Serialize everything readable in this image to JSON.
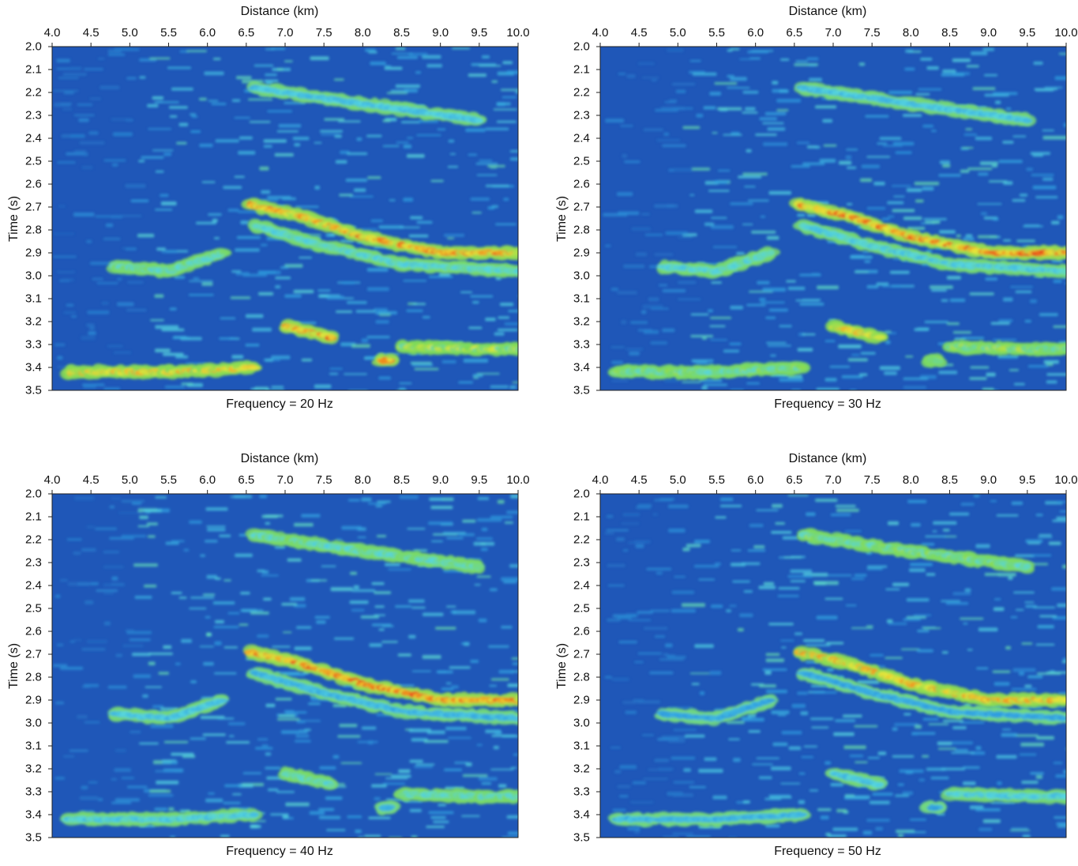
{
  "chart_data": [
    {
      "type": "heatmap",
      "title": "Frequency = 20 Hz",
      "xlabel": "Distance (km)",
      "ylabel": "Time (s)",
      "xticks": [
        "4.0",
        "4.5",
        "5.0",
        "5.5",
        "6.0",
        "6.5",
        "7.0",
        "7.5",
        "8.0",
        "8.5",
        "9.0",
        "9.5",
        "10.0"
      ],
      "yticks": [
        "2.0",
        "2.1",
        "2.2",
        "2.3",
        "2.4",
        "2.5",
        "2.6",
        "2.7",
        "2.8",
        "2.9",
        "3.0",
        "3.1",
        "3.2",
        "3.3",
        "3.4",
        "3.5"
      ],
      "xlim": [
        4.0,
        10.0
      ],
      "ylim": [
        2.0,
        3.5
      ],
      "y_inverted": true,
      "colorscale": [
        "#1f57b8",
        "#2f9ee0",
        "#56d6e0",
        "#7ed957",
        "#e8e83a",
        "#f08a1c",
        "#e0141b"
      ],
      "features": [
        {
          "x": [
            6.55,
            7.2,
            8.0,
            9.0,
            10.0
          ],
          "y": [
            2.69,
            2.74,
            2.83,
            2.9,
            2.9
          ],
          "intensity": 0.9
        },
        {
          "x": [
            6.6,
            7.5,
            8.5,
            10.0
          ],
          "y": [
            2.78,
            2.87,
            2.95,
            2.98
          ],
          "intensity": 0.45
        },
        {
          "x": [
            4.8,
            5.5,
            6.2
          ],
          "y": [
            2.96,
            2.98,
            2.9
          ],
          "intensity": 0.5
        },
        {
          "x": [
            7.0,
            7.6
          ],
          "y": [
            3.22,
            3.27
          ],
          "intensity": 0.95
        },
        {
          "x": [
            8.5,
            9.5,
            10.0
          ],
          "y": [
            3.31,
            3.32,
            3.32
          ],
          "intensity": 0.65
        },
        {
          "x": [
            4.2,
            5.5,
            6.6
          ],
          "y": [
            3.42,
            3.42,
            3.4
          ],
          "intensity": 0.8
        },
        {
          "x": [
            8.3
          ],
          "y": [
            3.37
          ],
          "intensity": 0.95
        },
        {
          "x": [
            6.6,
            8.0,
            9.5
          ],
          "y": [
            2.18,
            2.25,
            2.32
          ],
          "intensity": 0.35
        }
      ]
    },
    {
      "type": "heatmap",
      "title": "Frequency = 30 Hz",
      "xlabel": "Distance (km)",
      "ylabel": "Time (s)",
      "xticks": [
        "4.0",
        "4.5",
        "5.0",
        "5.5",
        "6.0",
        "6.5",
        "7.0",
        "7.5",
        "8.0",
        "8.5",
        "9.0",
        "9.5",
        "10.0"
      ],
      "yticks": [
        "2.0",
        "2.1",
        "2.2",
        "2.3",
        "2.4",
        "2.5",
        "2.6",
        "2.7",
        "2.8",
        "2.9",
        "3.0",
        "3.1",
        "3.2",
        "3.3",
        "3.4",
        "3.5"
      ],
      "xlim": [
        4.0,
        10.0
      ],
      "ylim": [
        2.0,
        3.5
      ],
      "y_inverted": true,
      "colorscale": [
        "#1f57b8",
        "#2f9ee0",
        "#56d6e0",
        "#7ed957",
        "#e8e83a",
        "#f08a1c",
        "#e0141b"
      ],
      "features": [
        {
          "x": [
            6.55,
            7.2,
            8.0,
            9.0,
            10.0
          ],
          "y": [
            2.69,
            2.74,
            2.83,
            2.9,
            2.9
          ],
          "intensity": 0.95
        },
        {
          "x": [
            6.6,
            7.5,
            8.5,
            10.0
          ],
          "y": [
            2.78,
            2.87,
            2.95,
            2.98
          ],
          "intensity": 0.4
        },
        {
          "x": [
            4.8,
            5.5,
            6.2
          ],
          "y": [
            2.96,
            2.98,
            2.9
          ],
          "intensity": 0.45
        },
        {
          "x": [
            7.0,
            7.6
          ],
          "y": [
            3.22,
            3.27
          ],
          "intensity": 0.8
        },
        {
          "x": [
            8.5,
            9.5,
            10.0
          ],
          "y": [
            3.31,
            3.32,
            3.32
          ],
          "intensity": 0.6
        },
        {
          "x": [
            4.2,
            5.5,
            6.6
          ],
          "y": [
            3.42,
            3.42,
            3.4
          ],
          "intensity": 0.55
        },
        {
          "x": [
            8.3
          ],
          "y": [
            3.37
          ],
          "intensity": 0.55
        },
        {
          "x": [
            6.6,
            8.0,
            9.5
          ],
          "y": [
            2.18,
            2.25,
            2.32
          ],
          "intensity": 0.35
        }
      ]
    },
    {
      "type": "heatmap",
      "title": "Frequency = 40 Hz",
      "xlabel": "Distance (km)",
      "ylabel": "Time (s)",
      "xticks": [
        "4.0",
        "4.5",
        "5.0",
        "5.5",
        "6.0",
        "6.5",
        "7.0",
        "7.5",
        "8.0",
        "8.5",
        "9.0",
        "9.5",
        "10.0"
      ],
      "yticks": [
        "2.0",
        "2.1",
        "2.2",
        "2.3",
        "2.4",
        "2.5",
        "2.6",
        "2.7",
        "2.8",
        "2.9",
        "3.0",
        "3.1",
        "3.2",
        "3.3",
        "3.4",
        "3.5"
      ],
      "xlim": [
        4.0,
        10.0
      ],
      "ylim": [
        2.0,
        3.5
      ],
      "y_inverted": true,
      "colorscale": [
        "#1f57b8",
        "#2f9ee0",
        "#56d6e0",
        "#7ed957",
        "#e8e83a",
        "#f08a1c",
        "#e0141b"
      ],
      "features": [
        {
          "x": [
            6.55,
            7.2,
            8.0,
            9.0,
            10.0
          ],
          "y": [
            2.69,
            2.74,
            2.83,
            2.9,
            2.9
          ],
          "intensity": 0.95
        },
        {
          "x": [
            6.6,
            7.5,
            8.5,
            10.0
          ],
          "y": [
            2.78,
            2.87,
            2.95,
            2.98
          ],
          "intensity": 0.3
        },
        {
          "x": [
            4.8,
            5.5,
            6.2
          ],
          "y": [
            2.96,
            2.98,
            2.9
          ],
          "intensity": 0.35
        },
        {
          "x": [
            7.0,
            7.6
          ],
          "y": [
            3.22,
            3.27
          ],
          "intensity": 0.5
        },
        {
          "x": [
            8.5,
            9.5,
            10.0
          ],
          "y": [
            3.31,
            3.32,
            3.32
          ],
          "intensity": 0.5
        },
        {
          "x": [
            4.2,
            5.5,
            6.6
          ],
          "y": [
            3.42,
            3.42,
            3.4
          ],
          "intensity": 0.4
        },
        {
          "x": [
            8.3
          ],
          "y": [
            3.37
          ],
          "intensity": 0.3
        },
        {
          "x": [
            6.6,
            8.0,
            9.5
          ],
          "y": [
            2.18,
            2.25,
            2.32
          ],
          "intensity": 0.5
        }
      ]
    },
    {
      "type": "heatmap",
      "title": "Frequency = 50 Hz",
      "xlabel": "Distance (km)",
      "ylabel": "Time (s)",
      "xticks": [
        "4.0",
        "4.5",
        "5.0",
        "5.5",
        "6.0",
        "6.5",
        "7.0",
        "7.5",
        "8.0",
        "8.5",
        "9.0",
        "9.5",
        "10.0"
      ],
      "yticks": [
        "2.0",
        "2.1",
        "2.2",
        "2.3",
        "2.4",
        "2.5",
        "2.6",
        "2.7",
        "2.8",
        "2.9",
        "3.0",
        "3.1",
        "3.2",
        "3.3",
        "3.4",
        "3.5"
      ],
      "xlim": [
        4.0,
        10.0
      ],
      "ylim": [
        2.0,
        3.5
      ],
      "y_inverted": true,
      "colorscale": [
        "#1f57b8",
        "#2f9ee0",
        "#56d6e0",
        "#7ed957",
        "#e8e83a",
        "#f08a1c",
        "#e0141b"
      ],
      "features": [
        {
          "x": [
            6.55,
            7.2,
            8.0,
            9.0,
            10.0
          ],
          "y": [
            2.69,
            2.74,
            2.83,
            2.9,
            2.9
          ],
          "intensity": 0.85
        },
        {
          "x": [
            6.6,
            7.5,
            8.5,
            10.0
          ],
          "y": [
            2.78,
            2.87,
            2.95,
            2.98
          ],
          "intensity": 0.25
        },
        {
          "x": [
            4.8,
            5.5,
            6.2
          ],
          "y": [
            2.96,
            2.98,
            2.9
          ],
          "intensity": 0.25
        },
        {
          "x": [
            7.0,
            7.6
          ],
          "y": [
            3.22,
            3.27
          ],
          "intensity": 0.35
        },
        {
          "x": [
            8.5,
            9.5,
            10.0
          ],
          "y": [
            3.31,
            3.32,
            3.32
          ],
          "intensity": 0.4
        },
        {
          "x": [
            4.2,
            5.5,
            6.6
          ],
          "y": [
            3.42,
            3.42,
            3.4
          ],
          "intensity": 0.3
        },
        {
          "x": [
            8.3
          ],
          "y": [
            3.37
          ],
          "intensity": 0.25
        },
        {
          "x": [
            6.6,
            8.0,
            9.5
          ],
          "y": [
            2.18,
            2.25,
            2.32
          ],
          "intensity": 0.55
        }
      ]
    }
  ]
}
